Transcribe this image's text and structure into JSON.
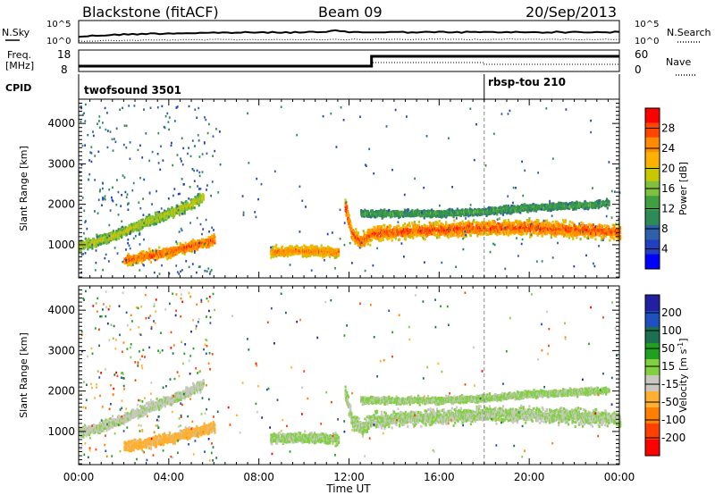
{
  "header": {
    "station": "Blackstone (fitACF)",
    "beam": "Beam 09",
    "date": "20/Sep/2013"
  },
  "noise_panel": {
    "left_label": "N.Sky",
    "right_label": "N.Search",
    "left_ticks": [
      "10^5",
      "10^0"
    ],
    "right_ticks": [
      "10^5",
      "10^0"
    ]
  },
  "freq_panel": {
    "left_label_1": "Freq.",
    "left_label_2": "[MHz]",
    "left_ticks": [
      "18",
      "8"
    ],
    "right_label": "Nave",
    "right_ticks": [
      "60",
      "0"
    ]
  },
  "cpid_panel": {
    "label": "CPID",
    "programs": [
      {
        "name": "twofsound 3501",
        "start_hour": 0
      },
      {
        "name": "rbsp-tou 210",
        "start_hour": 18
      }
    ]
  },
  "time_axis": {
    "label": "Time UT",
    "ticks": [
      "00:00",
      "04:00",
      "08:00",
      "12:00",
      "16:00",
      "20:00",
      "00:00"
    ]
  },
  "colorbars": {
    "power": {
      "label": "Power [dB]",
      "ticks": [
        "28",
        "24",
        "20",
        "16",
        "12",
        "8",
        "4"
      ],
      "colors": [
        "#ff0000",
        "#ff4500",
        "#ff8c00",
        "#ffb000",
        "#c8c800",
        "#80c040",
        "#40a040",
        "#2e8b57",
        "#3060a8",
        "#2040c0",
        "#0000ff"
      ]
    },
    "velocity": {
      "label": "Velocity [m s^-1]",
      "ticks": [
        "200",
        "100",
        "50",
        "15",
        "-15",
        "-50",
        "-100",
        "-200"
      ],
      "colors": [
        "#2020a0",
        "#2050c0",
        "#1a7050",
        "#20a020",
        "#80d040",
        "#c8c8c0",
        "#ffb030",
        "#ff8000",
        "#ff4000",
        "#ff0000"
      ]
    }
  },
  "chart_data": [
    {
      "type": "heatmap",
      "title": "Power",
      "xlabel": "Time UT",
      "ylabel": "Slant Range [km]",
      "yticks": [
        "1000",
        "2000",
        "3000",
        "4000"
      ],
      "xlim": [
        0,
        24
      ],
      "ylim": [
        180,
        4600
      ],
      "colorbar_label": "Power [dB]",
      "colorbar_range": [
        0,
        30
      ],
      "series": [
        {
          "name": "",
          "x": [
            0.0,
            1.0,
            2.0,
            3.0,
            4.0,
            5.0,
            5.5
          ],
          "y": [
            1000,
            1150,
            1350,
            1600,
            1800,
            2050,
            2200
          ],
          "level": 18
        },
        {
          "name": "",
          "x": [
            2.0,
            3.0,
            4.0,
            5.0,
            6.0
          ],
          "y": [
            650,
            750,
            850,
            1000,
            1150
          ],
          "level": 26
        },
        {
          "name": "",
          "x": [
            8.5,
            9.5,
            10.5,
            11.5
          ],
          "y": [
            850,
            880,
            870,
            830
          ],
          "level": 24
        },
        {
          "name": "",
          "x": [
            11.8,
            12.1,
            12.5,
            13.0,
            14.0,
            16.0,
            18.0,
            20.0,
            22.0,
            24.0
          ],
          "y": [
            2000,
            1300,
            1100,
            1300,
            1350,
            1400,
            1450,
            1450,
            1400,
            1350
          ],
          "level": 27
        },
        {
          "name": "",
          "x": [
            12.5,
            14.0,
            16.0,
            18.0,
            20.0,
            22.0,
            23.5
          ],
          "y": [
            1800,
            1800,
            1800,
            1850,
            1950,
            2000,
            2050
          ],
          "level": 12
        }
      ]
    },
    {
      "type": "heatmap",
      "title": "Velocity",
      "xlabel": "Time UT",
      "ylabel": "Slant Range [km]",
      "yticks": [
        "1000",
        "2000",
        "3000",
        "4000"
      ],
      "xlim": [
        0,
        24
      ],
      "ylim": [
        180,
        4600
      ],
      "colorbar_label": "Velocity [m s^-1]",
      "colorbar_range": [
        -200,
        200
      ],
      "series": [
        {
          "name": "",
          "x": [
            0.0,
            1.0,
            2.0,
            3.0,
            4.0,
            5.0,
            5.5
          ],
          "y": [
            1000,
            1150,
            1350,
            1600,
            1800,
            2050,
            2200
          ],
          "level": -10
        },
        {
          "name": "",
          "x": [
            2.0,
            3.0,
            4.0,
            5.0,
            6.0
          ],
          "y": [
            650,
            750,
            850,
            1000,
            1150
          ],
          "level": -60
        },
        {
          "name": "",
          "x": [
            8.5,
            9.5,
            10.5,
            11.5
          ],
          "y": [
            850,
            880,
            870,
            830
          ],
          "level": 5
        },
        {
          "name": "",
          "x": [
            11.8,
            12.1,
            12.5,
            13.0,
            14.0,
            16.0,
            18.0,
            20.0,
            22.0,
            24.0
          ],
          "y": [
            2000,
            1300,
            1100,
            1300,
            1350,
            1400,
            1450,
            1450,
            1400,
            1350
          ],
          "level": 0
        },
        {
          "name": "",
          "x": [
            12.5,
            14.0,
            16.0,
            18.0,
            20.0,
            22.0,
            23.5
          ],
          "y": [
            1800,
            1800,
            1800,
            1850,
            1950,
            2000,
            2050
          ],
          "level": 5
        }
      ]
    }
  ]
}
